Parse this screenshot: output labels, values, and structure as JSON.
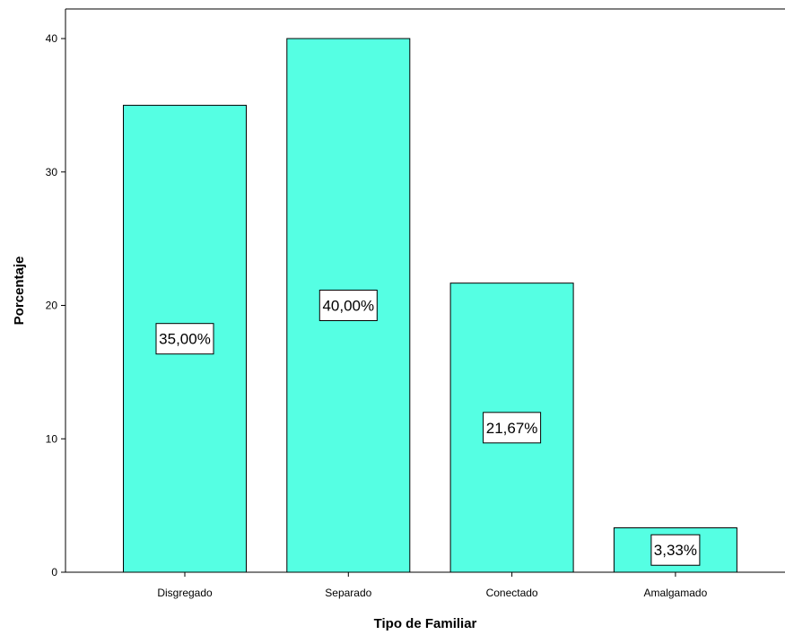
{
  "chart_data": {
    "type": "bar",
    "categories": [
      "Disgregado",
      "Separado",
      "Conectado",
      "Amalgamado"
    ],
    "values": [
      35.0,
      40.0,
      21.67,
      3.33
    ],
    "data_labels": [
      "35,00%",
      "40,00%",
      "21,67%",
      "3,33%"
    ],
    "title": "",
    "xlabel": "Tipo de Familiar",
    "ylabel": "Porcentaje",
    "ylim": [
      0,
      40
    ],
    "yticks": [
      0,
      10,
      20,
      30,
      40
    ],
    "ytick_labels": [
      "0",
      "10",
      "20",
      "30",
      "40"
    ],
    "grid": false,
    "legend": "none",
    "bar_color": "#55ffe3"
  }
}
